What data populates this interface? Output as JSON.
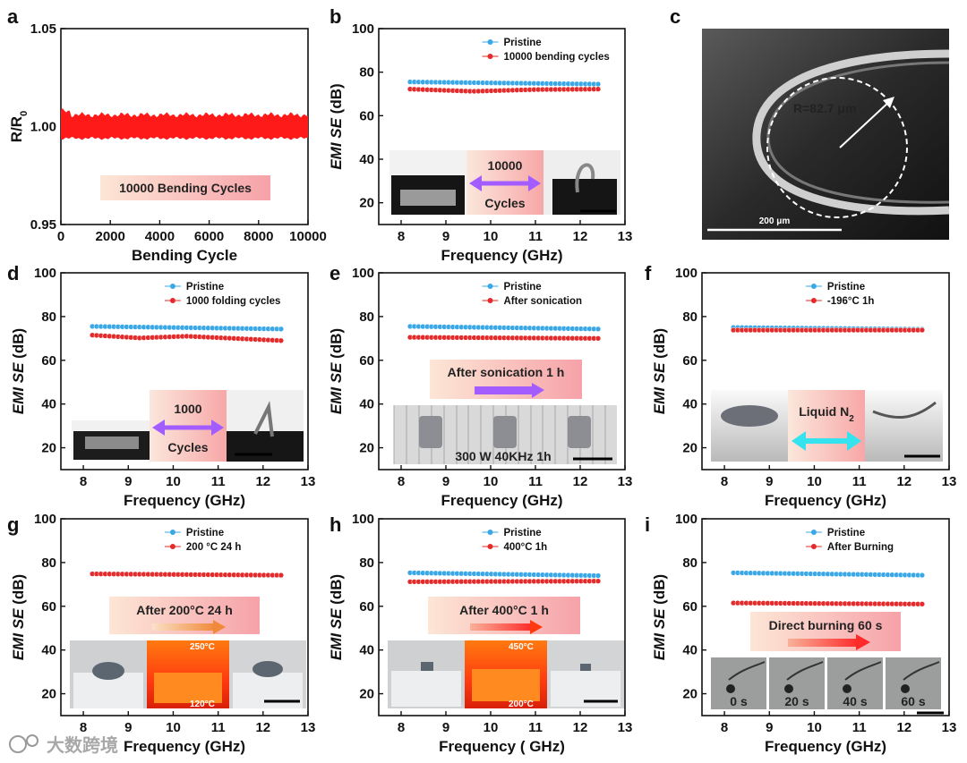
{
  "colors": {
    "pristine": "#3aa8e6",
    "treated": "#e42a2a",
    "axis": "#111111",
    "trace": "#ff1a1a",
    "watermark": "#9a9a9a"
  },
  "watermark": "大数跨境",
  "chart_data": [
    {
      "id": "a",
      "panel_label": "a",
      "type": "line",
      "xlabel": "Bending Cycle",
      "ylabel": "R/R0",
      "ylabel_main": "R/R",
      "ylabel_sub": "0",
      "xlim": [
        0,
        10000
      ],
      "ylim": [
        0.95,
        1.05
      ],
      "xticks": [
        0,
        2000,
        4000,
        6000,
        8000,
        10000
      ],
      "yticks": [
        0.95,
        1.0,
        1.05
      ],
      "ytick_labels": [
        "0.95",
        "1.00",
        "1.05"
      ],
      "series": [
        {
          "name": "R/R0",
          "upper": 1.006,
          "lower": 0.994,
          "mean": 1.0
        }
      ],
      "annotation": "10000 Bending Cycles"
    },
    {
      "id": "b",
      "panel_label": "b",
      "type": "scatter",
      "xlabel": "Frequency (GHz)",
      "ylabel": "EMI SE (dB)",
      "xlim": [
        7.5,
        13
      ],
      "ylim": [
        10,
        100
      ],
      "xticks": [
        8,
        9,
        10,
        11,
        12,
        13
      ],
      "yticks": [
        20,
        40,
        60,
        80,
        100
      ],
      "series": [
        {
          "name": "Pristine",
          "x_start": 8.2,
          "x_end": 12.4,
          "y": [
            75.5,
            74.5
          ]
        },
        {
          "name": "10000 bending cycles",
          "x_start": 8.2,
          "x_end": 12.4,
          "y": [
            72.2,
            71.2,
            72.0,
            72.2
          ]
        }
      ],
      "inset": {
        "top_text": "10000",
        "bottom_text": "Cycles"
      }
    },
    {
      "id": "c",
      "panel_label": "c",
      "type": "image",
      "annotations": [
        "R=82.7 μm",
        "200 μm"
      ]
    },
    {
      "id": "d",
      "panel_label": "d",
      "type": "scatter",
      "xlabel": "Frequency (GHz)",
      "ylabel": "EMI SE (dB)",
      "xlim": [
        7.5,
        13
      ],
      "ylim": [
        10,
        100
      ],
      "xticks": [
        8,
        9,
        10,
        11,
        12,
        13
      ],
      "yticks": [
        20,
        40,
        60,
        80,
        100
      ],
      "series": [
        {
          "name": "Pristine",
          "x_start": 8.2,
          "x_end": 12.4,
          "y": [
            75.5,
            74.3
          ]
        },
        {
          "name": "1000 folding cycles",
          "x_start": 8.2,
          "x_end": 12.4,
          "y": [
            71.5,
            70.2,
            71.0,
            70.0,
            69.0
          ]
        }
      ],
      "inset": {
        "top_text": "1000",
        "bottom_text": "Cycles"
      }
    },
    {
      "id": "e",
      "panel_label": "e",
      "type": "scatter",
      "xlabel": "Frequency (GHz)",
      "ylabel": "EMI SE (dB)",
      "xlim": [
        7.5,
        13
      ],
      "ylim": [
        10,
        100
      ],
      "xticks": [
        8,
        9,
        10,
        11,
        12,
        13
      ],
      "yticks": [
        20,
        40,
        60,
        80,
        100
      ],
      "series": [
        {
          "name": "Pristine",
          "x_start": 8.2,
          "x_end": 12.4,
          "y": [
            75.5,
            74.3
          ]
        },
        {
          "name": "After sonication",
          "x_start": 8.2,
          "x_end": 12.4,
          "y": [
            70.5,
            70.0
          ]
        }
      ],
      "annotation": "After sonication 1 h",
      "inset": {
        "caption": "300 W 40KHz 1h"
      }
    },
    {
      "id": "f",
      "panel_label": "f",
      "type": "scatter",
      "xlabel": "Frequency (GHz)",
      "ylabel": "EMI SE (dB)",
      "xlim": [
        7.5,
        13
      ],
      "ylim": [
        10,
        100
      ],
      "xticks": [
        8,
        9,
        10,
        11,
        12,
        13
      ],
      "yticks": [
        20,
        40,
        60,
        80,
        100
      ],
      "series": [
        {
          "name": "Pristine",
          "x_start": 8.2,
          "x_end": 12.4,
          "y": [
            75.0,
            74.2
          ]
        },
        {
          "name": "-196°C 1h",
          "x_start": 8.2,
          "x_end": 12.4,
          "y": [
            73.8,
            73.8
          ]
        }
      ],
      "inset": {
        "title": "Liquid N",
        "title_sub": "2"
      }
    },
    {
      "id": "g",
      "panel_label": "g",
      "type": "scatter",
      "xlabel": "Frequency (GHz)",
      "ylabel": "EMI SE (dB)",
      "xlim": [
        7.5,
        13
      ],
      "ylim": [
        10,
        100
      ],
      "xticks": [
        8,
        9,
        10,
        11,
        12,
        13
      ],
      "yticks": [
        20,
        40,
        60,
        80,
        100
      ],
      "series": [
        {
          "name": "Pristine",
          "x_start": 8.2,
          "x_end": 12.4,
          "y": [
            75.0,
            74.0
          ]
        },
        {
          "name": "200 °C 24 h",
          "x_start": 8.2,
          "x_end": 12.4,
          "y": [
            74.8,
            74.2
          ]
        }
      ],
      "annotation": "After 200°C  24 h",
      "inset": {
        "hot_label": "250°C",
        "cold_label": "120°C"
      }
    },
    {
      "id": "h",
      "panel_label": "h",
      "type": "scatter",
      "xlabel": "Frequency ( GHz)",
      "ylabel": "EMI SE (dB)",
      "xlim": [
        7.5,
        13
      ],
      "ylim": [
        10,
        100
      ],
      "xticks": [
        8,
        9,
        10,
        11,
        12,
        13
      ],
      "yticks": [
        20,
        40,
        60,
        80,
        100
      ],
      "series": [
        {
          "name": "Pristine",
          "x_start": 8.2,
          "x_end": 12.4,
          "y": [
            75.3,
            74.0
          ]
        },
        {
          "name": "400°C 1h",
          "x_start": 8.2,
          "x_end": 12.4,
          "y": [
            71.2,
            71.5
          ]
        }
      ],
      "annotation": "After 400°C  1 h",
      "inset": {
        "hot_label": "450°C",
        "cold_label": "200°C"
      }
    },
    {
      "id": "i",
      "panel_label": "i",
      "type": "scatter",
      "xlabel": "Frequency (GHz)",
      "ylabel": "EMI SE (dB)",
      "xlim": [
        7.5,
        13
      ],
      "ylim": [
        10,
        100
      ],
      "xticks": [
        8,
        9,
        10,
        11,
        12,
        13
      ],
      "yticks": [
        20,
        40,
        60,
        80,
        100
      ],
      "series": [
        {
          "name": "Pristine",
          "x_start": 8.2,
          "x_end": 12.4,
          "y": [
            75.3,
            74.2
          ]
        },
        {
          "name": "After Burning",
          "x_start": 8.2,
          "x_end": 12.4,
          "y": [
            61.5,
            61.0
          ]
        }
      ],
      "annotation": "Direct burning 60 s",
      "inset": {
        "frames": [
          "0 s",
          "20 s",
          "40 s",
          "60 s"
        ]
      }
    }
  ]
}
